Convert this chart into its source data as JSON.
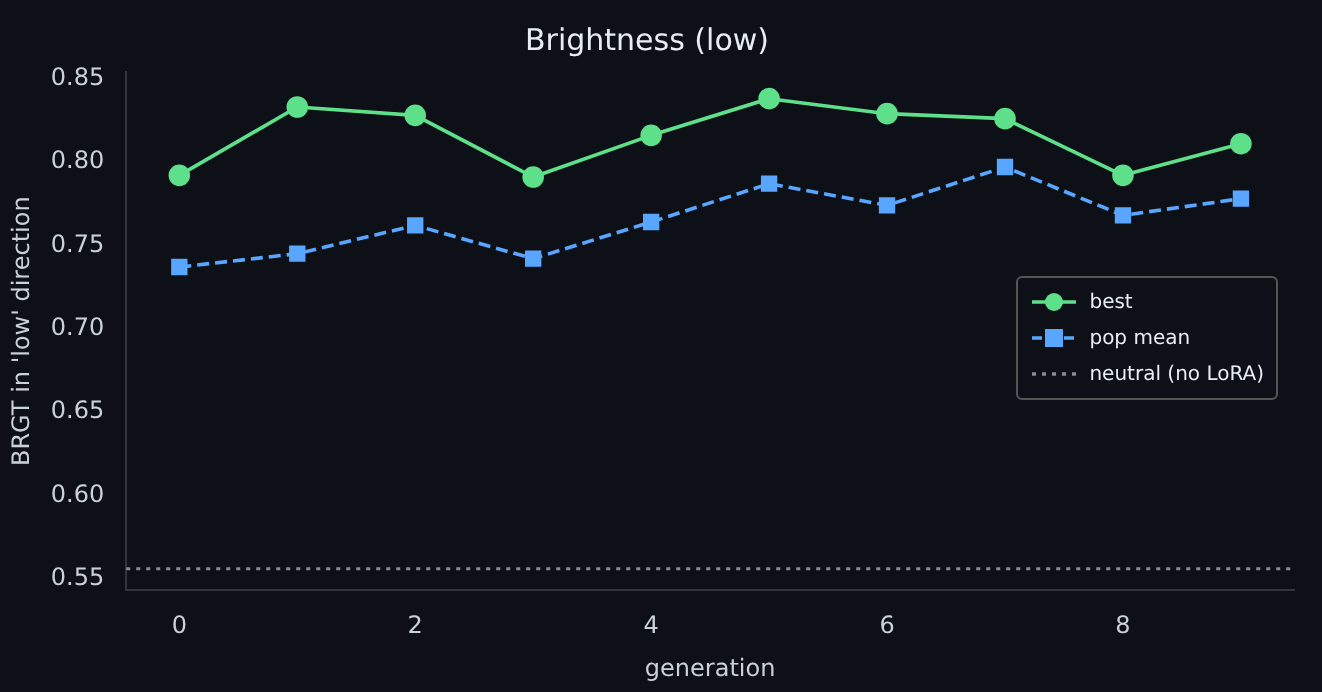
{
  "chart_data": {
    "type": "line",
    "title": "Brightness (low)",
    "xlabel": "generation",
    "ylabel": "BRGT in 'low' direction",
    "x": [
      0,
      1,
      2,
      3,
      4,
      5,
      6,
      7,
      8,
      9
    ],
    "series": [
      {
        "name": "best",
        "color": "#5ee08a",
        "marker": "circle",
        "line_style": "solid",
        "values": [
          0.792,
          0.833,
          0.828,
          0.791,
          0.816,
          0.838,
          0.829,
          0.826,
          0.792,
          0.811
        ]
      },
      {
        "name": "pop mean",
        "color": "#58a6ff",
        "marker": "square",
        "line_style": "dashed",
        "values": [
          0.737,
          0.745,
          0.762,
          0.742,
          0.764,
          0.787,
          0.774,
          0.797,
          0.768,
          0.778
        ]
      }
    ],
    "ref_lines": [
      {
        "axis": "y",
        "value": 0.556,
        "label": "neutral (no LoRA)",
        "color": "#8b8b8b",
        "line_style": "dotted"
      }
    ],
    "xlim": [
      -0.45,
      9.45
    ],
    "xticks": [
      0,
      2,
      4,
      6,
      8
    ],
    "ylim": [
      0.543,
      0.854
    ],
    "yticks": [
      0.55,
      {
        "value": 0.6,
        "label": "0.60"
      },
      0.65,
      {
        "value": 0.7,
        "label": "0.70"
      },
      0.75,
      {
        "value": 0.8,
        "label": "0.80"
      },
      0.85
    ],
    "grid": false,
    "legend": "right"
  }
}
